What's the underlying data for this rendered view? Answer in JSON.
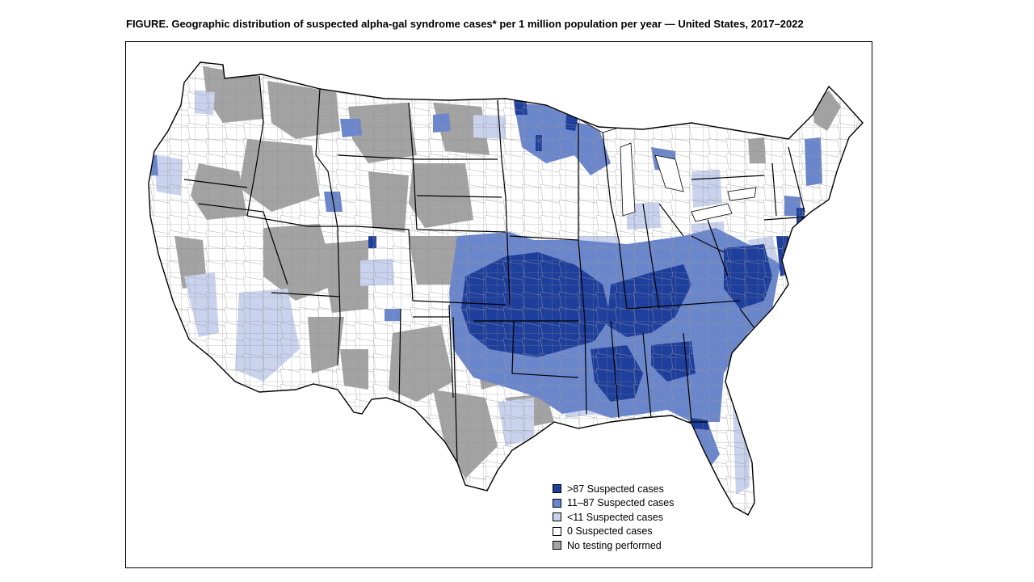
{
  "title": "FIGURE. Geographic distribution of suspected alpha-gal syndrome cases* per 1 million population per year — United States, 2017–2022",
  "legend": {
    "items": [
      {
        "label": ">87 Suspected cases",
        "color": "#1f3f9c"
      },
      {
        "label": "11–87 Suspected cases",
        "color": "#6a86cc"
      },
      {
        "label": "<11 Suspected cases",
        "color": "#c9d3ee"
      },
      {
        "label": "0 Suspected cases",
        "color": "#ffffff"
      },
      {
        "label": "No testing performed",
        "color": "#a3a3a3"
      }
    ]
  },
  "map_colors": {
    "border": "#000000",
    "county_line": "#8a8a8a"
  }
}
